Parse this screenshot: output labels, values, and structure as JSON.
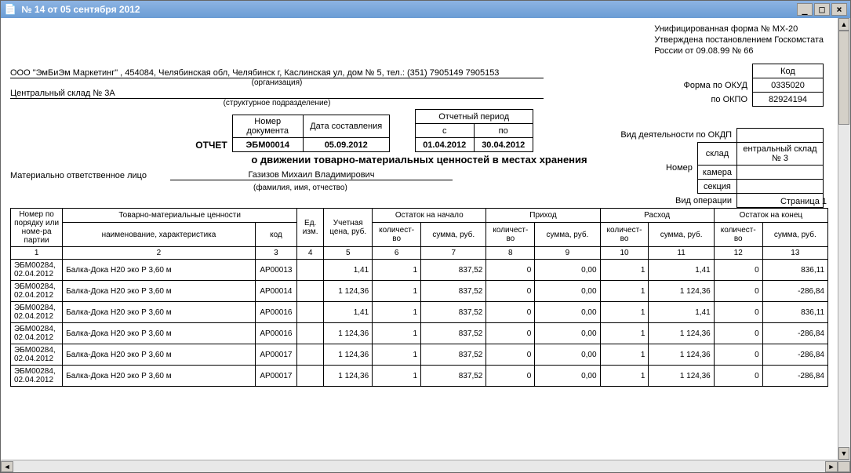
{
  "window": {
    "title": "№ 14 от 05 сентября 2012"
  },
  "approval": {
    "line1": "Унифицированная форма № МХ-20",
    "line2": "Утверждена постановлением Госкомстата",
    "line3": "России от 09.08.99 № 66"
  },
  "codes": {
    "header": "Код",
    "okud_label": "Форма по ОКУД",
    "okud": "0335020",
    "okpo_label": "по ОКПО",
    "okpo": "82924194"
  },
  "org": {
    "company": "ООО \"ЭмБиЭм Маркетинг\" , 454084, Челябинская обл, Челябинск г, Каслинская ул, дом № 5, тел.: (351) 7905149 7905153",
    "company_sub": "(организация)",
    "dept": "Центральный склад № 3А",
    "dept_sub": "(структурное подразделение)"
  },
  "right_meta": {
    "okdp_label": "Вид деятельности по ОКДП",
    "nomer_label": "Номер",
    "sklad_label": "склад",
    "sklad_value": "ентральный склад № 3",
    "kamera_label": "камера",
    "section_label": "секция",
    "operation_label": "Вид операции"
  },
  "doc_meta": {
    "otchet": "ОТЧЕТ",
    "num_label": "Номер документа",
    "num": "ЭБМ00014",
    "date_label": "Дата составления",
    "date": "05.09.2012",
    "period_label": "Отчетный период",
    "from_label": "с",
    "to_label": "по",
    "from": "01.04.2012",
    "to": "30.04.2012"
  },
  "report_title": "о движении товарно-материальных ценностей в местах хранения",
  "responsible": {
    "label": "Материально ответственное лицо",
    "value": "Газизов Михаил Владимирович",
    "sub": "(фамилия, имя, отчество)"
  },
  "page_label": "Страница 1",
  "table": {
    "headers": {
      "c1a": "Номер по порядку или номе-ра партии",
      "c2a": "Товарно-материальные ценности",
      "c2b_name": "наименование, характеристика",
      "c2b_code": "код",
      "c3": "Ед. изм.",
      "c4": "Учетная цена, руб.",
      "c5a": "Остаток на начало",
      "c6a": "Приход",
      "c7a": "Расход",
      "c8a": "Остаток на конец",
      "qty": "количест- во",
      "sum": "сумма, руб."
    },
    "nums": [
      "1",
      "2",
      "3",
      "4",
      "5",
      "6",
      "7",
      "8",
      "9",
      "10",
      "11",
      "12",
      "13"
    ],
    "rows": [
      {
        "id": "ЭБМ00284, 02.04.2012",
        "name": "Балка-Дока Н20 эко Р 3,60 м",
        "code": "АР00013",
        "price": "1,41",
        "q1": "1",
        "s1": "837,52",
        "q2": "0",
        "s2": "0,00",
        "q3": "1",
        "s3": "1,41",
        "q4": "0",
        "s4": "836,11"
      },
      {
        "id": "ЭБМ00284, 02.04.2012",
        "name": "Балка-Дока Н20 эко Р 3,60 м",
        "code": "АР00014",
        "price": "1 124,36",
        "q1": "1",
        "s1": "837,52",
        "q2": "0",
        "s2": "0,00",
        "q3": "1",
        "s3": "1 124,36",
        "q4": "0",
        "s4": "-286,84"
      },
      {
        "id": "ЭБМ00284, 02.04.2012",
        "name": "Балка-Дока Н20 эко Р 3,60 м",
        "code": "АР00016",
        "price": "1,41",
        "q1": "1",
        "s1": "837,52",
        "q2": "0",
        "s2": "0,00",
        "q3": "1",
        "s3": "1,41",
        "q4": "0",
        "s4": "836,11"
      },
      {
        "id": "ЭБМ00284, 02.04.2012",
        "name": "Балка-Дока Н20 эко Р 3,60 м",
        "code": "АР00016",
        "price": "1 124,36",
        "q1": "1",
        "s1": "837,52",
        "q2": "0",
        "s2": "0,00",
        "q3": "1",
        "s3": "1 124,36",
        "q4": "0",
        "s4": "-286,84"
      },
      {
        "id": "ЭБМ00284, 02.04.2012",
        "name": "Балка-Дока Н20 эко Р 3,60 м",
        "code": "АР00017",
        "price": "1 124,36",
        "q1": "1",
        "s1": "837,52",
        "q2": "0",
        "s2": "0,00",
        "q3": "1",
        "s3": "1 124,36",
        "q4": "0",
        "s4": "-286,84"
      },
      {
        "id": "ЭБМ00284, 02.04.2012",
        "name": "Балка-Дока Н20 эко Р 3,60 м",
        "code": "АР00017",
        "price": "1 124,36",
        "q1": "1",
        "s1": "837,52",
        "q2": "0",
        "s2": "0,00",
        "q3": "1",
        "s3": "1 124,36",
        "q4": "0",
        "s4": "-286,84"
      }
    ]
  },
  "colors": {
    "titlebar_start": "#8db4e3",
    "titlebar_end": "#6a9cd4",
    "border": "#000000",
    "bg": "#ffffff"
  }
}
